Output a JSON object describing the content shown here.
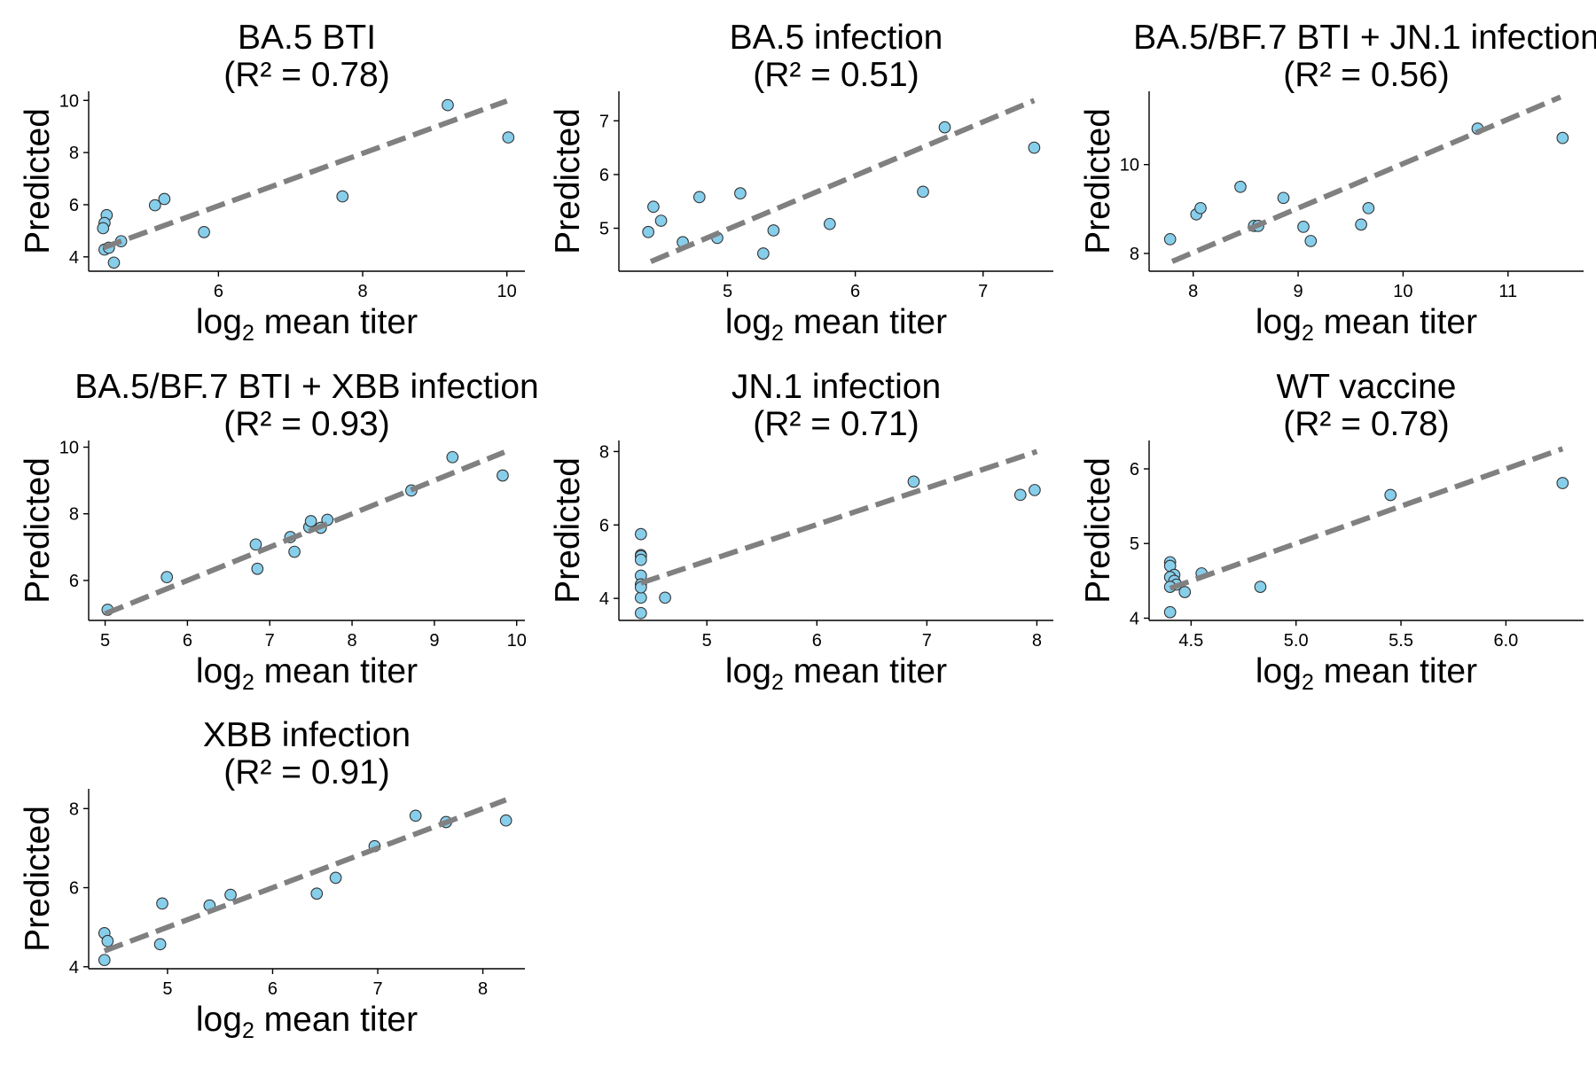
{
  "style": {
    "point_color": "#87ceeb",
    "point_edge": "#333333",
    "fit_line_color": "#808080"
  },
  "chart_data": [
    {
      "type": "scatter",
      "title": "BA.5 BTI",
      "subtitle": "(R² = 0.78)",
      "xlabel": "log2 mean titer",
      "ylabel": "Predicted",
      "xlim": [
        4.2,
        10.25
      ],
      "ylim": [
        3.45,
        10.35
      ],
      "xticks": [
        6,
        8,
        10
      ],
      "yticks": [
        4,
        6,
        8,
        10
      ],
      "x": [
        4.45,
        4.42,
        4.4,
        4.42,
        4.48,
        4.55,
        4.65,
        5.12,
        5.25,
        5.8,
        7.72,
        9.18,
        10.02
      ],
      "y": [
        5.6,
        5.3,
        5.1,
        4.28,
        4.35,
        3.78,
        4.6,
        5.98,
        6.22,
        4.95,
        6.32,
        9.82,
        8.58
      ],
      "fit_line": {
        "x": [
          4.4,
          10.0
        ],
        "y": [
          4.35,
          9.98
        ]
      }
    },
    {
      "type": "scatter",
      "title": "BA.5 infection",
      "subtitle": "(R² = 0.51)",
      "xlabel": "log2 mean titer",
      "ylabel": "Predicted",
      "xlim": [
        4.15,
        7.55
      ],
      "ylim": [
        4.2,
        7.55
      ],
      "xticks": [
        5,
        6,
        7
      ],
      "yticks": [
        5,
        6,
        7
      ],
      "x": [
        4.38,
        4.42,
        4.48,
        4.65,
        4.78,
        4.92,
        5.1,
        5.28,
        5.36,
        5.8,
        6.53,
        6.7,
        7.4
      ],
      "y": [
        4.93,
        5.4,
        5.14,
        4.74,
        5.58,
        4.82,
        5.65,
        4.53,
        4.96,
        5.08,
        5.68,
        6.88,
        6.5
      ],
      "fit_line": {
        "x": [
          4.4,
          7.4
        ],
        "y": [
          4.38,
          7.38
        ]
      }
    },
    {
      "type": "scatter",
      "title": "BA.5/BF.7 BTI + JN.1 infection",
      "subtitle": "(R² = 0.56)",
      "xlabel": "log2 mean titer",
      "ylabel": "Predicted",
      "xlim": [
        7.58,
        11.72
      ],
      "ylim": [
        7.6,
        11.65
      ],
      "xticks": [
        8,
        9,
        10,
        11
      ],
      "yticks": [
        8,
        10
      ],
      "x": [
        7.78,
        8.03,
        8.07,
        8.45,
        8.58,
        8.62,
        8.86,
        9.05,
        9.12,
        9.6,
        9.67,
        10.71,
        11.52
      ],
      "y": [
        8.32,
        8.88,
        9.02,
        9.5,
        8.62,
        8.62,
        9.25,
        8.6,
        8.28,
        8.65,
        9.02,
        10.81,
        10.6
      ],
      "fit_line": {
        "x": [
          7.8,
          11.5
        ],
        "y": [
          7.82,
          11.52
        ]
      }
    },
    {
      "type": "scatter",
      "title": "BA.5/BF.7 BTI + XBB infection",
      "subtitle": "(R² = 0.93)",
      "xlabel": "log2 mean titer",
      "ylabel": "Predicted",
      "xlim": [
        4.8,
        10.1
      ],
      "ylim": [
        4.8,
        10.2
      ],
      "xticks": [
        5,
        6,
        7,
        8,
        9,
        10
      ],
      "yticks": [
        6,
        8,
        10
      ],
      "x": [
        5.03,
        5.75,
        6.83,
        6.85,
        7.25,
        7.3,
        7.48,
        7.5,
        7.62,
        7.7,
        8.72,
        9.22,
        9.83
      ],
      "y": [
        5.12,
        6.1,
        7.08,
        6.35,
        7.3,
        6.86,
        7.6,
        7.78,
        7.58,
        7.82,
        8.7,
        9.7,
        9.15
      ],
      "fit_line": {
        "x": [
          5.0,
          9.85
        ],
        "y": [
          5.0,
          9.85
        ]
      }
    },
    {
      "type": "scatter",
      "title": "JN.1 infection",
      "subtitle": "(R² = 0.71)",
      "xlabel": "log2 mean titer",
      "ylabel": "Predicted",
      "xlim": [
        4.2,
        8.15
      ],
      "ylim": [
        3.4,
        8.3
      ],
      "xticks": [
        5,
        6,
        7,
        8
      ],
      "yticks": [
        4,
        6,
        8
      ],
      "x": [
        4.4,
        4.4,
        4.4,
        4.4,
        4.4,
        4.4,
        4.4,
        4.4,
        4.4,
        4.62,
        6.88,
        7.85,
        7.98
      ],
      "y": [
        5.75,
        5.18,
        5.15,
        5.05,
        4.62,
        4.38,
        4.02,
        3.6,
        4.3,
        4.02,
        7.18,
        6.82,
        6.95
      ],
      "fit_line": {
        "x": [
          4.4,
          8.0
        ],
        "y": [
          4.42,
          8.0
        ]
      }
    },
    {
      "type": "scatter",
      "title": "WT vaccine",
      "subtitle": "(R² = 0.78)",
      "xlabel": "log2 mean titer",
      "ylabel": "Predicted",
      "xlim": [
        4.3,
        6.37
      ],
      "ylim": [
        3.97,
        6.38
      ],
      "xticks": [
        4.5,
        5.0,
        5.5,
        6.0
      ],
      "yticks": [
        4,
        5,
        6
      ],
      "tick_format": "fixed1_x",
      "x": [
        4.4,
        4.4,
        4.42,
        4.4,
        4.42,
        4.43,
        4.4,
        4.4,
        4.47,
        4.55,
        4.83,
        5.45,
        6.27
      ],
      "y": [
        4.75,
        4.7,
        4.58,
        4.55,
        4.5,
        4.45,
        4.42,
        4.08,
        4.35,
        4.6,
        4.42,
        5.65,
        5.81
      ],
      "fit_line": {
        "x": [
          4.4,
          6.27
        ],
        "y": [
          4.4,
          6.27
        ]
      }
    },
    {
      "type": "scatter",
      "title": "XBB infection",
      "subtitle": "(R² = 0.91)",
      "xlabel": "log2 mean titer",
      "ylabel": "Predicted",
      "xlim": [
        4.25,
        8.4
      ],
      "ylim": [
        3.95,
        8.5
      ],
      "xticks": [
        5,
        6,
        7,
        8
      ],
      "yticks": [
        4,
        6,
        8
      ],
      "x": [
        4.4,
        4.43,
        4.4,
        4.93,
        4.95,
        5.4,
        5.6,
        6.42,
        6.6,
        6.97,
        7.36,
        7.65,
        8.22
      ],
      "y": [
        4.85,
        4.65,
        4.17,
        4.57,
        5.6,
        5.55,
        5.82,
        5.85,
        6.25,
        7.05,
        7.82,
        7.66,
        7.7
      ],
      "fit_line": {
        "x": [
          4.4,
          8.22
        ],
        "y": [
          4.4,
          8.22
        ]
      }
    }
  ]
}
